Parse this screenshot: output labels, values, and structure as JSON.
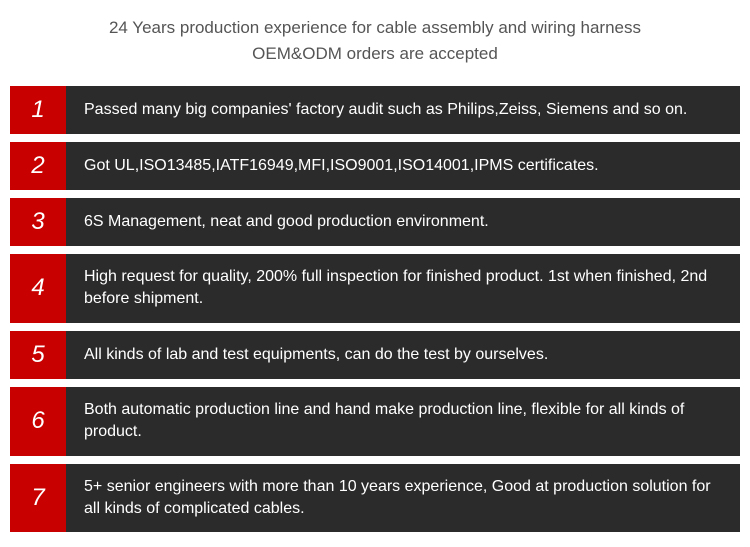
{
  "header": {
    "line1": "24 Years production experience for cable assembly and wiring harness",
    "line2": "OEM&ODM orders are accepted"
  },
  "rows": [
    {
      "number": "1",
      "text": "Passed many big companies' factory audit such as Philips,Zeiss, Siemens and so on."
    },
    {
      "number": "2",
      "text": "Got UL,ISO13485,IATF16949,MFI,ISO9001,ISO14001,IPMS certificates."
    },
    {
      "number": "3",
      "text": "6S Management, neat and good production environment."
    },
    {
      "number": "4",
      "text": "High request for quality, 200% full inspection for finished product. 1st when finished, 2nd before shipment."
    },
    {
      "number": "5",
      "text": "All kinds of lab and test equipments, can do the test by ourselves."
    },
    {
      "number": "6",
      "text": "Both automatic production line and hand make production line, flexible for all kinds of product."
    },
    {
      "number": "7",
      "text": "5+ senior engineers with more than 10 years experience, Good at production solution for all kinds of complicated cables."
    }
  ],
  "styles": {
    "number_bg": "#c80000",
    "number_color": "#ffffff",
    "text_bg": "#2b2b2b",
    "text_color": "#ffffff",
    "header_color": "#555555",
    "page_bg": "#ffffff",
    "number_fontsize": 24,
    "text_fontsize": 16,
    "header_fontsize": 17,
    "row_gap": 8,
    "number_cell_width": 56
  }
}
